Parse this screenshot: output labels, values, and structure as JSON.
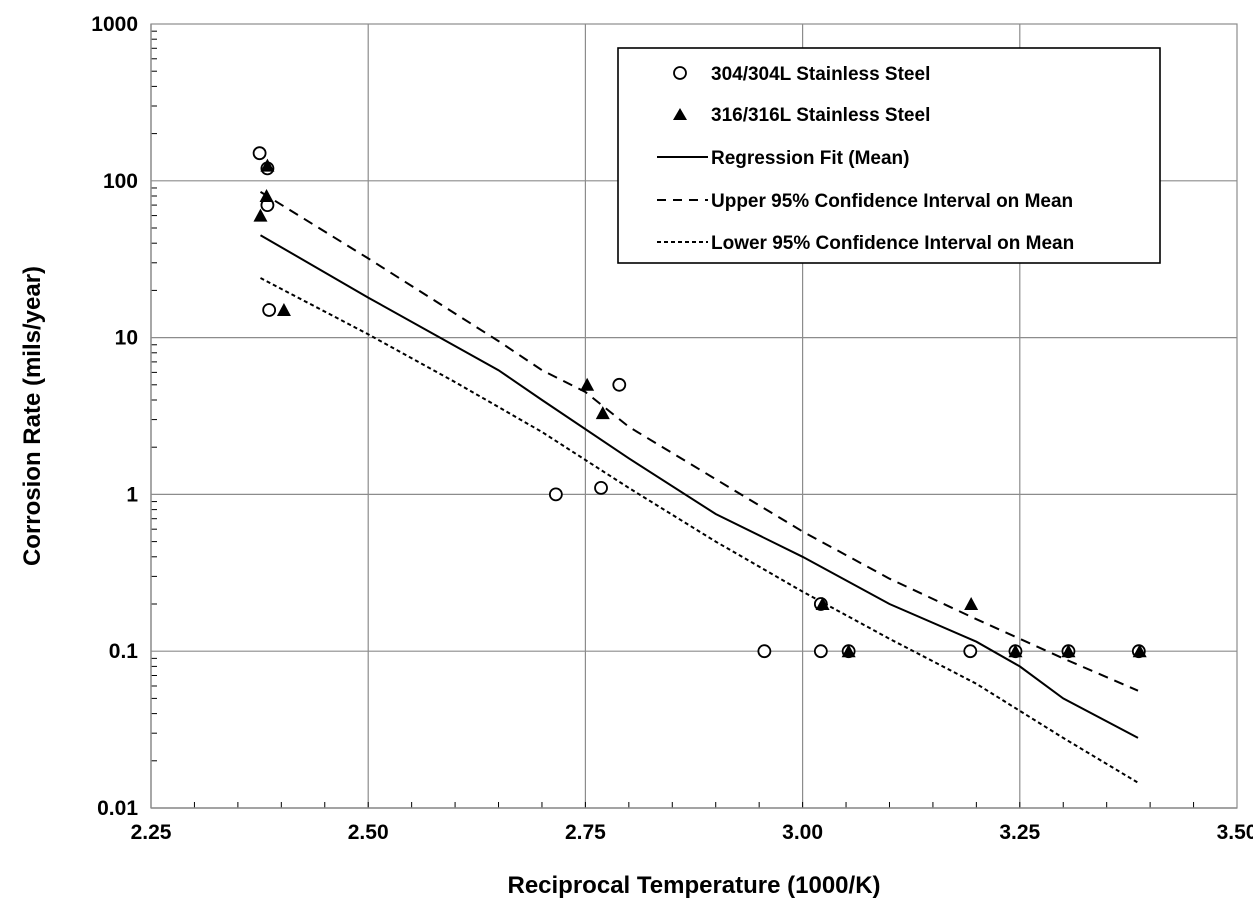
{
  "chart_data": {
    "type": "scatter",
    "xlabel": "Reciprocal Temperature (1000/K)",
    "ylabel": "Corrosion Rate (mils/year)",
    "xlim": [
      2.25,
      3.5
    ],
    "ylim": [
      0.01,
      1000
    ],
    "yscale": "log",
    "grid": true,
    "legend_position": "top-right",
    "x_ticks": [
      2.25,
      2.5,
      2.75,
      3.0,
      3.25,
      3.5
    ],
    "x_tick_labels": [
      "2.25",
      "2.50",
      "2.75",
      "3.00",
      "3.25",
      "3.50"
    ],
    "y_ticks": [
      0.01,
      0.1,
      1,
      10,
      100,
      1000
    ],
    "y_tick_labels": [
      "0.01",
      "0.1",
      "1",
      "10",
      "100",
      "1000"
    ],
    "series": [
      {
        "name": "304/304L Stainless Steel",
        "marker": "circle-open",
        "points": [
          [
            2.375,
            150
          ],
          [
            2.384,
            120
          ],
          [
            2.384,
            70
          ],
          [
            2.386,
            15
          ],
          [
            2.716,
            1.0
          ],
          [
            2.768,
            1.1
          ],
          [
            2.789,
            5.0
          ],
          [
            2.956,
            0.1
          ],
          [
            3.021,
            0.2
          ],
          [
            3.021,
            0.1
          ],
          [
            3.053,
            0.1
          ],
          [
            3.193,
            0.1
          ],
          [
            3.245,
            0.1
          ],
          [
            3.306,
            0.1
          ],
          [
            3.387,
            0.1
          ]
        ]
      },
      {
        "name": "316/316L Stainless Steel",
        "marker": "triangle-filled",
        "points": [
          [
            2.376,
            60
          ],
          [
            2.383,
            80
          ],
          [
            2.384,
            125
          ],
          [
            2.403,
            15
          ],
          [
            2.752,
            5.0
          ],
          [
            2.77,
            3.3
          ],
          [
            3.023,
            0.2
          ],
          [
            3.053,
            0.1
          ],
          [
            3.194,
            0.2
          ],
          [
            3.245,
            0.1
          ],
          [
            3.306,
            0.1
          ],
          [
            3.388,
            0.1
          ]
        ]
      },
      {
        "name": "Regression Fit (Mean)",
        "style": "solid",
        "points": [
          [
            2.376,
            45
          ],
          [
            2.5,
            18
          ],
          [
            2.65,
            6.2
          ],
          [
            2.7,
            4.0
          ],
          [
            2.8,
            1.7
          ],
          [
            2.9,
            0.75
          ],
          [
            3.0,
            0.4
          ],
          [
            3.1,
            0.2
          ],
          [
            3.2,
            0.115
          ],
          [
            3.25,
            0.08
          ],
          [
            3.3,
            0.05
          ],
          [
            3.386,
            0.028
          ]
        ]
      },
      {
        "name": "Upper 95% Confidence Interval on Mean",
        "style": "dashed",
        "points": [
          [
            2.376,
            85
          ],
          [
            2.5,
            32
          ],
          [
            2.65,
            9.5
          ],
          [
            2.7,
            6.2
          ],
          [
            2.75,
            4.5
          ],
          [
            2.8,
            2.7
          ],
          [
            2.9,
            1.25
          ],
          [
            3.0,
            0.58
          ],
          [
            3.1,
            0.29
          ],
          [
            3.2,
            0.16
          ],
          [
            3.3,
            0.09
          ],
          [
            3.386,
            0.056
          ]
        ]
      },
      {
        "name": "Lower 95% Confidence Interval on Mean",
        "style": "dotted",
        "points": [
          [
            2.376,
            24
          ],
          [
            2.5,
            10.5
          ],
          [
            2.6,
            5.2
          ],
          [
            2.7,
            2.5
          ],
          [
            2.8,
            1.1
          ],
          [
            2.9,
            0.5
          ],
          [
            3.0,
            0.24
          ],
          [
            3.1,
            0.12
          ],
          [
            3.2,
            0.062
          ],
          [
            3.3,
            0.028
          ],
          [
            3.386,
            0.0145
          ]
        ]
      }
    ]
  }
}
